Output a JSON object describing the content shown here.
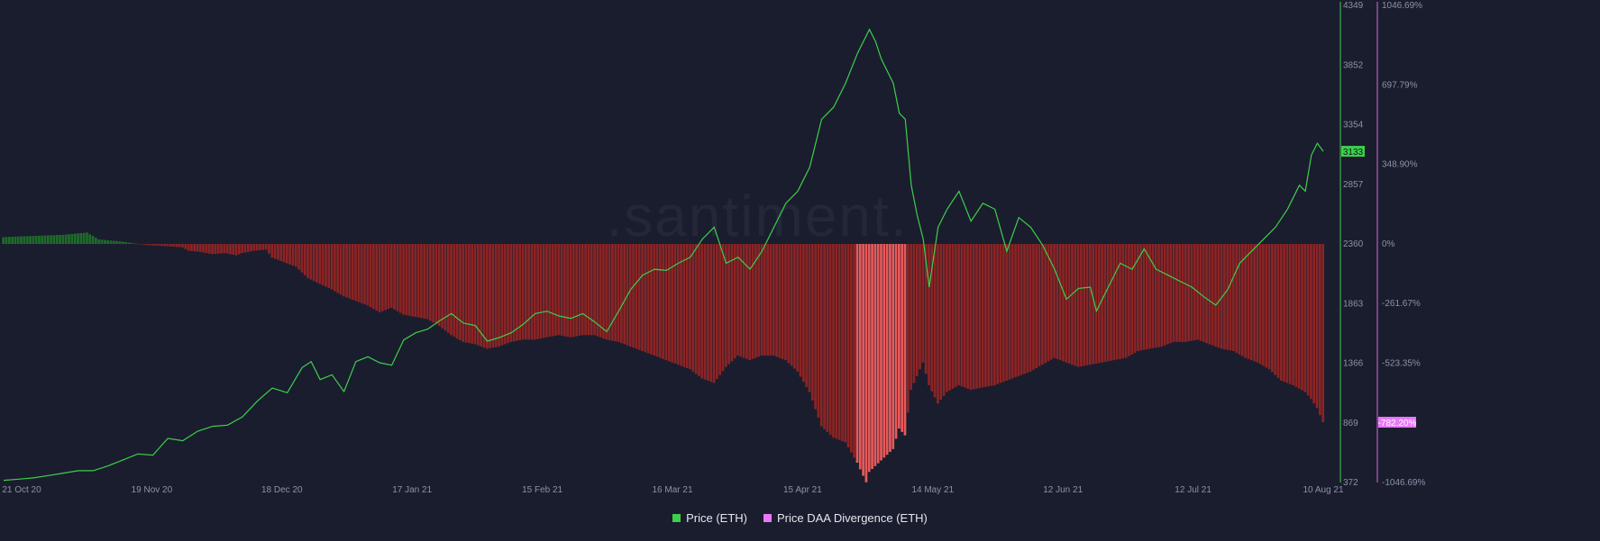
{
  "chart_data": {
    "type": "line+bar",
    "watermark": ".santiment.",
    "x_ticks": [
      "21 Oct 20",
      "19 Nov 20",
      "18 Dec 20",
      "17 Jan 21",
      "15 Feb 21",
      "16 Mar 21",
      "15 Apr 21",
      "14 May 21",
      "12 Jun 21",
      "12 Jul 21",
      "10 Aug 21"
    ],
    "y_left_ticks": [
      "4349",
      "3852",
      "3354",
      "2857",
      "2360",
      "1863",
      "1366",
      "869",
      "372"
    ],
    "y_right_ticks": [
      "1046.69%",
      "697.79%",
      "348.90%",
      "0%",
      "-261.67%",
      "-523.35%",
      "-1046.69%"
    ],
    "ylim_left": [
      372,
      4349
    ],
    "ylim_right": [
      -1046.69,
      1046.69
    ],
    "current_price_label": "3133",
    "current_divergence_label": "-782.20%",
    "colors": {
      "price": "#3ecf4a",
      "divergence_legend": "#e879f9",
      "bar_negative": "#8c2424",
      "bar_negative_bright": "#e85a5a",
      "bar_positive": "#1f6b2a",
      "left_axis": "#3ecf4a",
      "right_axis": "#d26bd9"
    },
    "series": [
      {
        "name": "Price (ETH)",
        "axis": "left",
        "points": [
          [
            0,
            390
          ],
          [
            5,
            400
          ],
          [
            10,
            410
          ],
          [
            15,
            430
          ],
          [
            20,
            450
          ],
          [
            25,
            470
          ],
          [
            30,
            470
          ],
          [
            35,
            510
          ],
          [
            40,
            560
          ],
          [
            45,
            610
          ],
          [
            50,
            600
          ],
          [
            55,
            740
          ],
          [
            60,
            720
          ],
          [
            65,
            800
          ],
          [
            70,
            840
          ],
          [
            75,
            850
          ],
          [
            80,
            920
          ],
          [
            85,
            1050
          ],
          [
            90,
            1160
          ],
          [
            95,
            1120
          ],
          [
            100,
            1330
          ],
          [
            103,
            1380
          ],
          [
            106,
            1230
          ],
          [
            110,
            1270
          ],
          [
            114,
            1130
          ],
          [
            118,
            1380
          ],
          [
            122,
            1420
          ],
          [
            126,
            1370
          ],
          [
            130,
            1350
          ],
          [
            134,
            1560
          ],
          [
            138,
            1620
          ],
          [
            142,
            1650
          ],
          [
            146,
            1720
          ],
          [
            150,
            1780
          ],
          [
            154,
            1700
          ],
          [
            158,
            1680
          ],
          [
            162,
            1550
          ],
          [
            166,
            1580
          ],
          [
            170,
            1620
          ],
          [
            174,
            1690
          ],
          [
            178,
            1780
          ],
          [
            182,
            1800
          ],
          [
            186,
            1760
          ],
          [
            190,
            1740
          ],
          [
            194,
            1780
          ],
          [
            198,
            1710
          ],
          [
            202,
            1630
          ],
          [
            206,
            1800
          ],
          [
            210,
            1980
          ],
          [
            214,
            2100
          ],
          [
            218,
            2150
          ],
          [
            222,
            2140
          ],
          [
            226,
            2200
          ],
          [
            230,
            2250
          ],
          [
            234,
            2400
          ],
          [
            238,
            2500
          ],
          [
            242,
            2200
          ],
          [
            246,
            2250
          ],
          [
            250,
            2150
          ],
          [
            254,
            2300
          ],
          [
            258,
            2500
          ],
          [
            262,
            2700
          ],
          [
            266,
            2800
          ],
          [
            270,
            3000
          ],
          [
            274,
            3400
          ],
          [
            278,
            3500
          ],
          [
            282,
            3700
          ],
          [
            286,
            3950
          ],
          [
            290,
            4149
          ],
          [
            292,
            4050
          ],
          [
            294,
            3900
          ],
          [
            298,
            3700
          ],
          [
            300,
            3450
          ],
          [
            302,
            3400
          ],
          [
            304,
            2850
          ],
          [
            306,
            2600
          ],
          [
            308,
            2400
          ],
          [
            310,
            2000
          ],
          [
            313,
            2500
          ],
          [
            316,
            2650
          ],
          [
            320,
            2800
          ],
          [
            324,
            2550
          ],
          [
            328,
            2700
          ],
          [
            332,
            2650
          ],
          [
            336,
            2300
          ],
          [
            340,
            2580
          ],
          [
            344,
            2500
          ],
          [
            348,
            2350
          ],
          [
            352,
            2150
          ],
          [
            356,
            1900
          ],
          [
            360,
            1990
          ],
          [
            364,
            2000
          ],
          [
            366,
            1800
          ],
          [
            370,
            2000
          ],
          [
            374,
            2200
          ],
          [
            378,
            2150
          ],
          [
            382,
            2320
          ],
          [
            386,
            2150
          ],
          [
            390,
            2100
          ],
          [
            394,
            2050
          ],
          [
            398,
            2000
          ],
          [
            402,
            1920
          ],
          [
            406,
            1850
          ],
          [
            410,
            1980
          ],
          [
            414,
            2200
          ],
          [
            418,
            2300
          ],
          [
            422,
            2400
          ],
          [
            426,
            2500
          ],
          [
            430,
            2650
          ],
          [
            434,
            2850
          ],
          [
            436,
            2800
          ],
          [
            438,
            3100
          ],
          [
            440,
            3200
          ],
          [
            442,
            3133
          ]
        ]
      },
      {
        "name": "Price DAA Divergence (ETH)",
        "axis": "right",
        "points": [
          [
            0,
            30
          ],
          [
            10,
            35
          ],
          [
            20,
            40
          ],
          [
            28,
            50
          ],
          [
            32,
            20
          ],
          [
            40,
            10
          ],
          [
            48,
            -5
          ],
          [
            55,
            -10
          ],
          [
            60,
            -15
          ],
          [
            62,
            -30
          ],
          [
            66,
            -35
          ],
          [
            70,
            -45
          ],
          [
            74,
            -40
          ],
          [
            78,
            -50
          ],
          [
            80,
            -40
          ],
          [
            84,
            -30
          ],
          [
            88,
            -25
          ],
          [
            90,
            -60
          ],
          [
            94,
            -80
          ],
          [
            98,
            -100
          ],
          [
            102,
            -150
          ],
          [
            106,
            -175
          ],
          [
            110,
            -200
          ],
          [
            114,
            -230
          ],
          [
            118,
            -250
          ],
          [
            122,
            -270
          ],
          [
            126,
            -300
          ],
          [
            130,
            -280
          ],
          [
            134,
            -310
          ],
          [
            138,
            -320
          ],
          [
            142,
            -330
          ],
          [
            146,
            -360
          ],
          [
            150,
            -400
          ],
          [
            154,
            -430
          ],
          [
            158,
            -440
          ],
          [
            162,
            -460
          ],
          [
            166,
            -450
          ],
          [
            170,
            -430
          ],
          [
            174,
            -420
          ],
          [
            178,
            -420
          ],
          [
            182,
            -410
          ],
          [
            186,
            -400
          ],
          [
            190,
            -410
          ],
          [
            194,
            -400
          ],
          [
            198,
            -400
          ],
          [
            202,
            -420
          ],
          [
            206,
            -430
          ],
          [
            210,
            -450
          ],
          [
            214,
            -470
          ],
          [
            218,
            -490
          ],
          [
            222,
            -510
          ],
          [
            226,
            -530
          ],
          [
            230,
            -550
          ],
          [
            234,
            -590
          ],
          [
            238,
            -610
          ],
          [
            242,
            -540
          ],
          [
            246,
            -490
          ],
          [
            250,
            -510
          ],
          [
            254,
            -490
          ],
          [
            258,
            -490
          ],
          [
            262,
            -510
          ],
          [
            266,
            -560
          ],
          [
            270,
            -650
          ],
          [
            274,
            -800
          ],
          [
            278,
            -850
          ],
          [
            282,
            -870
          ],
          [
            286,
            -960
          ],
          [
            289,
            -1046
          ],
          [
            290,
            -1000
          ],
          [
            294,
            -950
          ],
          [
            298,
            -900
          ],
          [
            300,
            -810
          ],
          [
            302,
            -840
          ],
          [
            304,
            -640
          ],
          [
            306,
            -580
          ],
          [
            308,
            -520
          ],
          [
            310,
            -620
          ],
          [
            313,
            -700
          ],
          [
            316,
            -650
          ],
          [
            320,
            -620
          ],
          [
            324,
            -640
          ],
          [
            328,
            -630
          ],
          [
            332,
            -620
          ],
          [
            336,
            -600
          ],
          [
            340,
            -580
          ],
          [
            344,
            -560
          ],
          [
            348,
            -530
          ],
          [
            352,
            -500
          ],
          [
            356,
            -520
          ],
          [
            360,
            -540
          ],
          [
            364,
            -530
          ],
          [
            368,
            -520
          ],
          [
            372,
            -510
          ],
          [
            376,
            -500
          ],
          [
            380,
            -470
          ],
          [
            384,
            -460
          ],
          [
            388,
            -450
          ],
          [
            392,
            -430
          ],
          [
            396,
            -430
          ],
          [
            400,
            -420
          ],
          [
            404,
            -440
          ],
          [
            408,
            -460
          ],
          [
            412,
            -470
          ],
          [
            416,
            -500
          ],
          [
            420,
            -520
          ],
          [
            424,
            -550
          ],
          [
            428,
            -600
          ],
          [
            432,
            -620
          ],
          [
            436,
            -650
          ],
          [
            438,
            -680
          ],
          [
            440,
            -720
          ],
          [
            442,
            -782.2
          ]
        ]
      }
    ]
  },
  "legend": {
    "items": [
      {
        "label": "Price (ETH)",
        "color": "#3ecf4a"
      },
      {
        "label": "Price DAA Divergence (ETH)",
        "color": "#e879f9"
      }
    ]
  }
}
